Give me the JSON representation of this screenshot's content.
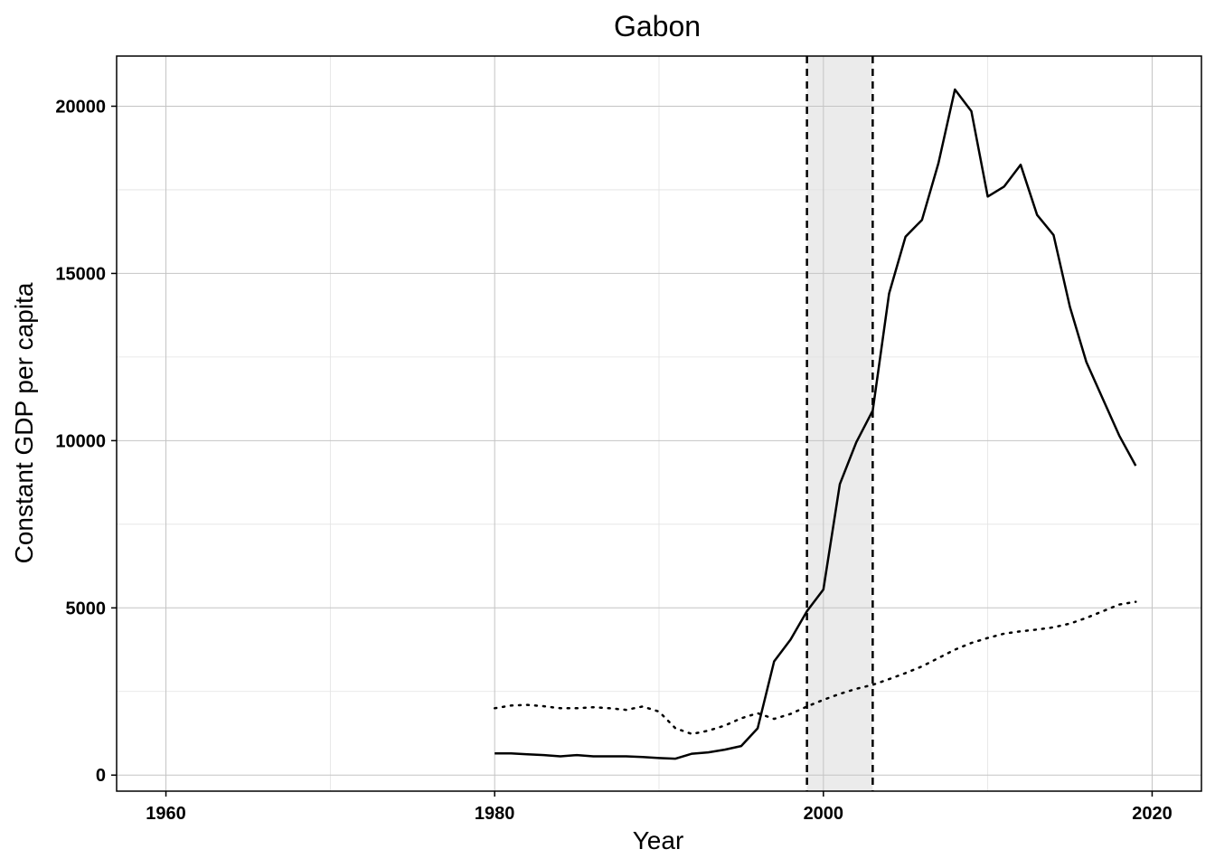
{
  "chart_data": {
    "type": "line",
    "title": "Gabon",
    "xlabel": "Year",
    "ylabel": "Constant GDP per capita",
    "xlim": [
      1957,
      2023
    ],
    "ylim": [
      -480,
      21500
    ],
    "x_ticks": [
      1960,
      1980,
      2000,
      2020
    ],
    "x_tick_labels": [
      "1960",
      "1980",
      "2000",
      "2020"
    ],
    "y_ticks": [
      0,
      5000,
      10000,
      15000,
      20000
    ],
    "y_tick_labels": [
      "0",
      "5000",
      "10000",
      "15000",
      "20000"
    ],
    "grid": true,
    "legend": "none",
    "shaded_region": {
      "x_start": 1999,
      "x_end": 2003,
      "color": "#ebebeb",
      "border_style": "dashed"
    },
    "series": [
      {
        "style": "solid",
        "color": "#000000",
        "x": [
          1980,
          1981,
          1982,
          1983,
          1984,
          1985,
          1986,
          1987,
          1988,
          1989,
          1990,
          1991,
          1992,
          1993,
          1994,
          1995,
          1996,
          1997,
          1998,
          1999,
          2000,
          2001,
          2002,
          2003,
          2004,
          2005,
          2006,
          2007,
          2008,
          2009,
          2010,
          2011,
          2012,
          2013,
          2014,
          2015,
          2016,
          2017,
          2018,
          2019
        ],
        "y": [
          650,
          650,
          620,
          600,
          560,
          600,
          560,
          560,
          560,
          540,
          510,
          490,
          640,
          680,
          760,
          870,
          1400,
          3400,
          4050,
          4900,
          5550,
          8700,
          9950,
          10900,
          14400,
          16100,
          16600,
          18300,
          20500,
          19850,
          17300,
          17600,
          18250,
          16750,
          16150,
          14000,
          12350,
          11250,
          10150,
          9250
        ]
      },
      {
        "style": "dotted",
        "color": "#000000",
        "x": [
          1980,
          1981,
          1982,
          1983,
          1984,
          1985,
          1986,
          1987,
          1988,
          1989,
          1990,
          1991,
          1992,
          1993,
          1994,
          1995,
          1996,
          1997,
          1998,
          1999,
          2000,
          2001,
          2002,
          2003,
          2004,
          2005,
          2006,
          2007,
          2008,
          2009,
          2010,
          2011,
          2012,
          2013,
          2014,
          2015,
          2016,
          2017,
          2018,
          2019
        ],
        "y": [
          2000,
          2080,
          2100,
          2060,
          2000,
          2000,
          2030,
          2000,
          1950,
          2050,
          1900,
          1400,
          1230,
          1330,
          1480,
          1700,
          1850,
          1680,
          1830,
          2050,
          2250,
          2430,
          2580,
          2700,
          2870,
          3050,
          3250,
          3500,
          3750,
          3950,
          4100,
          4230,
          4300,
          4350,
          4420,
          4530,
          4700,
          4900,
          5100,
          5180
        ]
      }
    ]
  }
}
